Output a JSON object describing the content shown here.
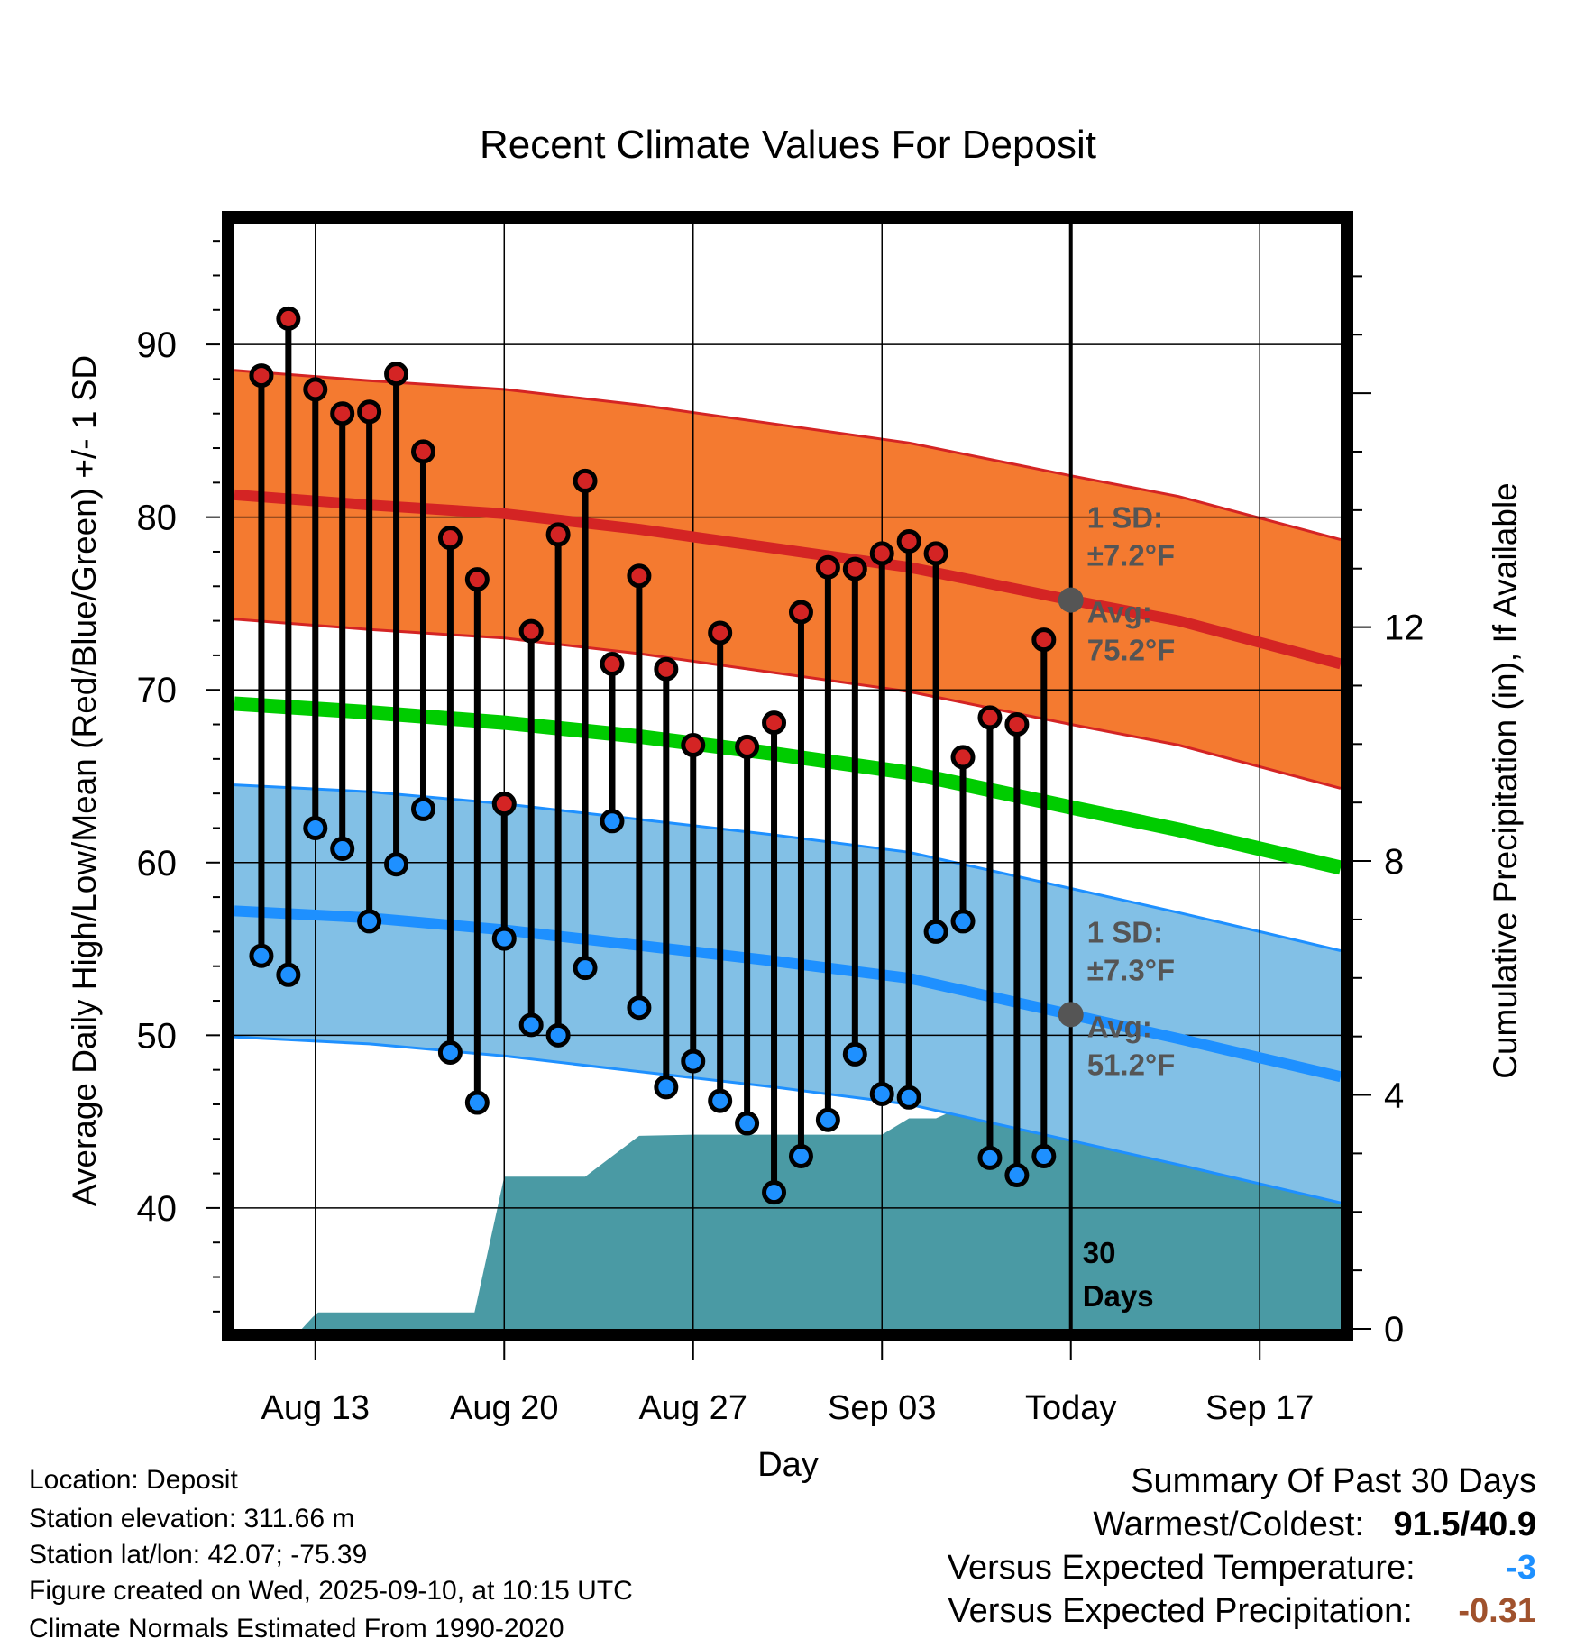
{
  "chart_data": {
    "type": "line",
    "title": "Recent Climate Values For Deposit",
    "xlabel": "Day",
    "ylabel": "Average Daily High/Low/Mean (Red/Blue/Green) +/- 1 SD",
    "y2label": "Cumulative Precipitation (in), If Available",
    "x_day_range": [
      0,
      41
    ],
    "xticks": [
      {
        "day": 3,
        "label": "Aug 13"
      },
      {
        "day": 10,
        "label": "Aug 20"
      },
      {
        "day": 17,
        "label": "Aug 27"
      },
      {
        "day": 24,
        "label": "Sep 03"
      },
      {
        "day": 31,
        "label": "Today"
      },
      {
        "day": 38,
        "label": "Sep 17"
      }
    ],
    "today_day": 31,
    "ylim": [
      33,
      97
    ],
    "yticks": [
      40,
      50,
      60,
      70,
      80,
      90
    ],
    "y2lim": [
      0,
      18.9
    ],
    "y2ticks": [
      0,
      4,
      8,
      12
    ],
    "daily_days": [
      1,
      2,
      3,
      4,
      5,
      6,
      7,
      8,
      9,
      10,
      11,
      12,
      13,
      14,
      15,
      16,
      17,
      18,
      19,
      20,
      21,
      22,
      23,
      24,
      25,
      26,
      27,
      28,
      29,
      30
    ],
    "daily_high": [
      88.2,
      91.5,
      87.4,
      86.0,
      86.1,
      88.3,
      83.8,
      78.8,
      76.4,
      63.4,
      73.4,
      79.0,
      82.1,
      71.5,
      76.6,
      71.2,
      66.8,
      73.3,
      66.7,
      68.1,
      74.5,
      77.1,
      77.0,
      77.9,
      78.6,
      77.9,
      66.1,
      68.4,
      68.0,
      72.9
    ],
    "daily_low": [
      54.6,
      53.5,
      62.0,
      60.8,
      56.6,
      59.9,
      63.1,
      49.0,
      46.1,
      55.6,
      50.6,
      50.0,
      53.9,
      62.4,
      51.6,
      47.0,
      48.5,
      46.2,
      44.9,
      40.9,
      43.0,
      45.1,
      48.9,
      46.6,
      46.4,
      56.0,
      56.6,
      42.9,
      41.9,
      43.0
    ],
    "normal_high": {
      "days": [
        0,
        5,
        10,
        15,
        20,
        25,
        31,
        35,
        41
      ],
      "mean": [
        81.3,
        80.7,
        80.2,
        79.3,
        78.2,
        77.1,
        75.2,
        74.0,
        71.5
      ],
      "sd": 7.2,
      "annotation": {
        "sd_label": "1 SD:",
        "sd_value": "±7.2°F",
        "avg_label": "Avg:",
        "avg_value": "75.2°F"
      }
    },
    "normal_low": {
      "days": [
        0,
        5,
        10,
        15,
        20,
        25,
        31,
        35,
        41
      ],
      "mean": [
        57.2,
        56.8,
        56.1,
        55.2,
        54.3,
        53.3,
        51.2,
        49.8,
        47.6
      ],
      "sd": 7.3,
      "annotation": {
        "sd_label": "1 SD:",
        "sd_value": "±7.3°F",
        "avg_label": "Avg:",
        "avg_value": "51.2°F"
      }
    },
    "normal_mean": {
      "days": [
        0,
        5,
        10,
        15,
        20,
        25,
        31,
        35,
        41
      ],
      "values": [
        69.2,
        68.7,
        68.1,
        67.3,
        66.3,
        65.2,
        63.2,
        61.9,
        59.7
      ]
    },
    "cumulative_precip": {
      "days": [
        0,
        2.5,
        2.9,
        3.1,
        8.9,
        10.0,
        13.0,
        15.0,
        17.0,
        24.0,
        25.0,
        26.0,
        27.0,
        31.0,
        41.0
      ],
      "values": [
        0,
        0,
        0.2,
        0.28,
        0.28,
        2.6,
        2.6,
        3.3,
        3.32,
        3.32,
        3.6,
        3.6,
        3.8,
        3.8,
        3.8
      ]
    },
    "window_label": "30 Days"
  },
  "station": {
    "location": "Location: Deposit",
    "elevation": "Station elevation: 311.66 m",
    "latlon": "Station lat/lon: 42.07; -75.39",
    "created": "Figure created on Wed, 2025-09-10, at 10:15 UTC",
    "normals": "Climate Normals Estimated From 1990-2020"
  },
  "summary": {
    "title": "Summary Of Past 30 Days",
    "warm_cold_label": "Warmest/Coldest:",
    "warm_cold_value": "91.5/40.9",
    "temp_label": "Versus Expected Temperature:",
    "temp_value": "-3",
    "temp_color": "#1e90ff",
    "precip_label": "Versus Expected Precipitation:",
    "precip_value": "-0.31",
    "precip_color": "#a0522d"
  },
  "colors": {
    "high_band": "#f47a30",
    "high_line": "#d42424",
    "low_band": "#82c0e6",
    "low_line": "#1e90ff",
    "mean_line": "#00cc00",
    "precip_fill": "#4a9aa4",
    "annotation_text": "#555555"
  }
}
